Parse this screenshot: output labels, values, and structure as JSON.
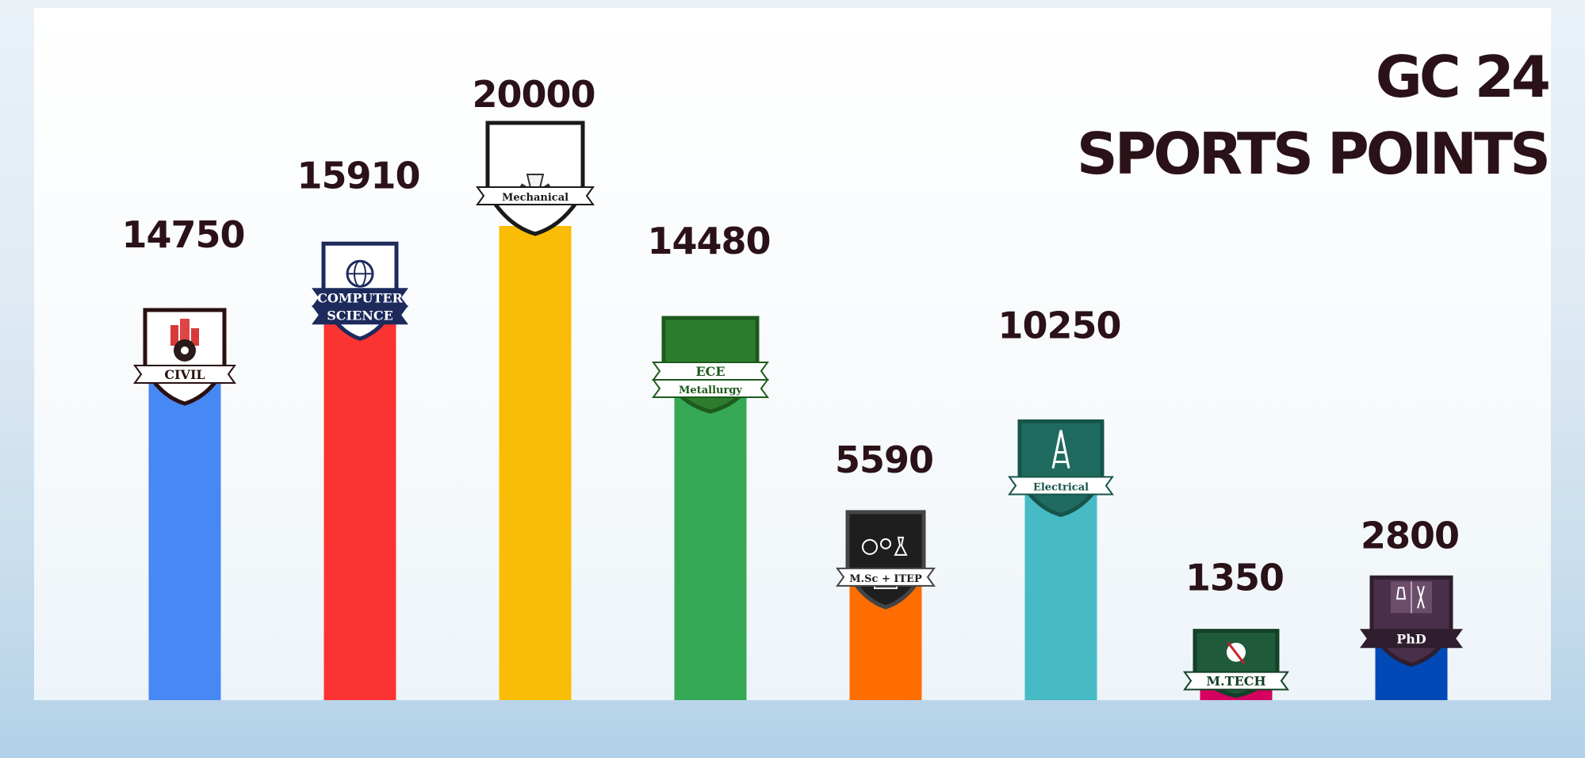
{
  "title": {
    "line1": "GC 24",
    "line2": "SPORTS POINTS"
  },
  "chart_data": {
    "type": "bar",
    "title": "GC 24 SPORTS POINTS",
    "categories": [
      "Civil",
      "Computer Science",
      "Mechanical",
      "ECE Metallurgy",
      "M.Sc + ITEP",
      "Electrical",
      "M.Tech",
      "PhD"
    ],
    "values": [
      14750,
      15910,
      20000,
      14480,
      5590,
      10250,
      1350,
      2800
    ],
    "value_labels": [
      "14750",
      "15910",
      "20000",
      "14480",
      "5590",
      "10250",
      "1350",
      "2800"
    ],
    "colors": [
      "#4688f4",
      "#fc3333",
      "#fabd05",
      "#35a853",
      "#ff6d00",
      "#46bbc5",
      "#d5005f",
      "#0149b6"
    ],
    "crest_labels": [
      [
        "CIVIL"
      ],
      [
        "COMPUTER",
        "SCIENCE"
      ],
      [
        "Mechanical"
      ],
      [
        "ECE",
        "Metallurgy"
      ],
      [
        "M.Sc + ITEP"
      ],
      [
        "Electrical"
      ],
      [
        "M.TECH"
      ],
      [
        "PhD"
      ]
    ],
    "crest_icons": [
      "building-gear-icon",
      "globe-circuit-icon",
      "gear-wrench-icon",
      "circuit-chip-icon",
      "globe-flask-book-icon",
      "transmission-tower-icon",
      "gear-tools-icon",
      "flask-tools-icon"
    ],
    "ylim": [
      0,
      20000
    ],
    "grid": false,
    "legend": "none"
  }
}
